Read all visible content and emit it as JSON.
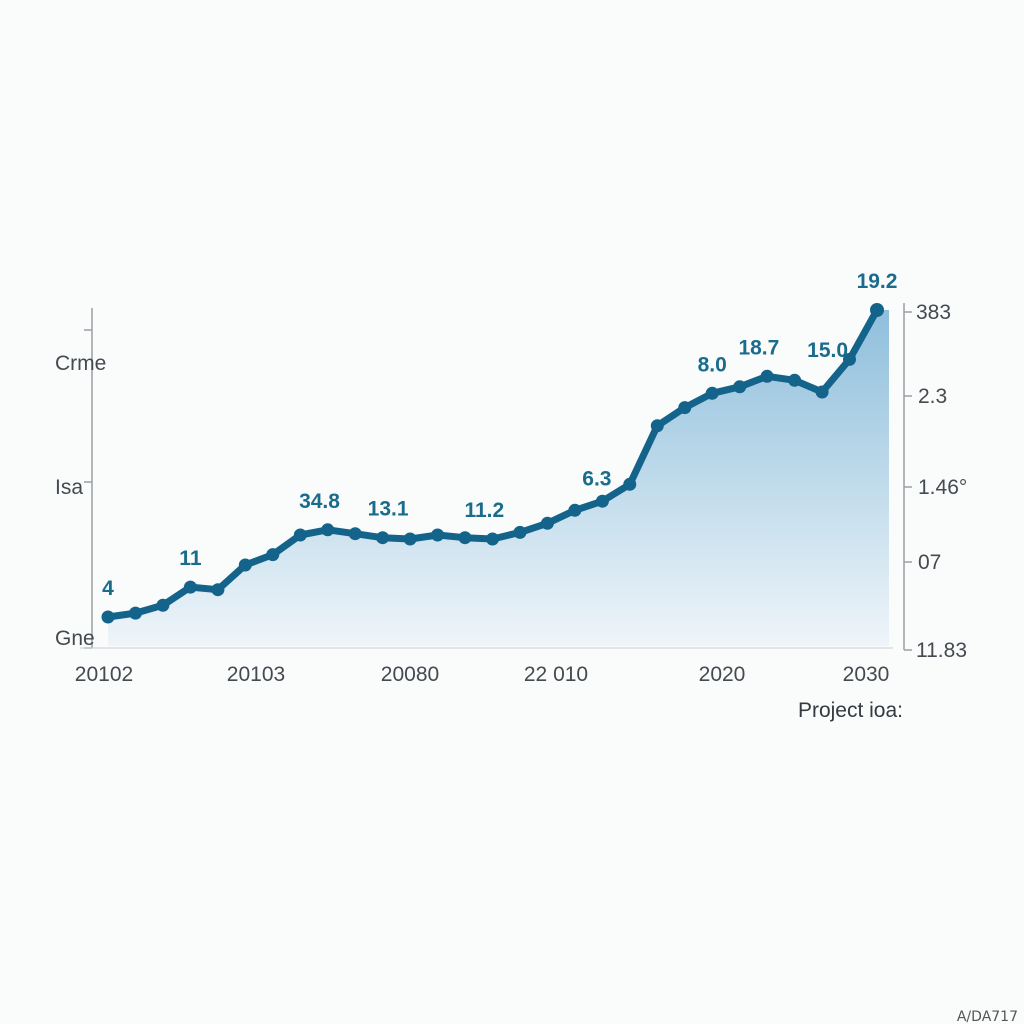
{
  "chart_data": {
    "type": "area",
    "caption": "Project ioa:",
    "line_color": "#13638a",
    "fill_color_top": "#8fbfdc",
    "fill_color_bottom": "#eef5f9",
    "left_axis_labels": [
      "Crme",
      "Isa",
      "Gne"
    ],
    "right_axis_labels": [
      "383",
      "2.3",
      "1.46°",
      "07",
      "11.83"
    ],
    "x_tick_labels": [
      "20102",
      "20103",
      "20080",
      "22 010",
      "2020",
      "2030"
    ],
    "points": [
      {
        "x": 0.0,
        "y": 1.0
      },
      {
        "x": 1.0,
        "y": 1.3
      },
      {
        "x": 2.0,
        "y": 1.9
      },
      {
        "x": 3.0,
        "y": 3.3
      },
      {
        "x": 4.0,
        "y": 3.1
      },
      {
        "x": 5.0,
        "y": 5.0
      },
      {
        "x": 6.0,
        "y": 5.8
      },
      {
        "x": 7.0,
        "y": 7.3
      },
      {
        "x": 8.0,
        "y": 7.7
      },
      {
        "x": 9.0,
        "y": 7.4
      },
      {
        "x": 10.0,
        "y": 7.1
      },
      {
        "x": 11.0,
        "y": 7.0
      },
      {
        "x": 12.0,
        "y": 7.3
      },
      {
        "x": 13.0,
        "y": 7.1
      },
      {
        "x": 14.0,
        "y": 7.0
      },
      {
        "x": 15.0,
        "y": 7.5
      },
      {
        "x": 16.0,
        "y": 8.2
      },
      {
        "x": 17.0,
        "y": 9.2
      },
      {
        "x": 18.0,
        "y": 9.9
      },
      {
        "x": 19.0,
        "y": 11.2
      },
      {
        "x": 20.0,
        "y": 15.7
      },
      {
        "x": 21.0,
        "y": 17.1
      },
      {
        "x": 22.0,
        "y": 18.2
      },
      {
        "x": 23.0,
        "y": 18.7
      },
      {
        "x": 24.0,
        "y": 19.5
      },
      {
        "x": 25.0,
        "y": 19.2
      },
      {
        "x": 26.0,
        "y": 18.3
      },
      {
        "x": 27.0,
        "y": 20.8
      },
      {
        "x": 28.0,
        "y": 24.6
      }
    ],
    "data_labels": [
      {
        "x": 0.0,
        "y": 1.0,
        "text": "4"
      },
      {
        "x": 3.0,
        "y": 3.3,
        "text": "11"
      },
      {
        "x": 7.7,
        "y": 7.7,
        "text": "34.8"
      },
      {
        "x": 10.2,
        "y": 7.1,
        "text": "13.1"
      },
      {
        "x": 13.7,
        "y": 7.0,
        "text": "11.2"
      },
      {
        "x": 17.8,
        "y": 9.4,
        "text": "6.3"
      },
      {
        "x": 22.0,
        "y": 18.2,
        "text": "8.0"
      },
      {
        "x": 23.7,
        "y": 19.5,
        "text": "18.7"
      },
      {
        "x": 26.2,
        "y": 19.3,
        "text": "15.0"
      },
      {
        "x": 28.0,
        "y": 24.6,
        "text": "19.2"
      }
    ],
    "xlim": [
      0.0,
      28.0
    ],
    "ylim": [
      0.0,
      26.0
    ],
    "grid": false,
    "watermark": "A/DA717"
  }
}
